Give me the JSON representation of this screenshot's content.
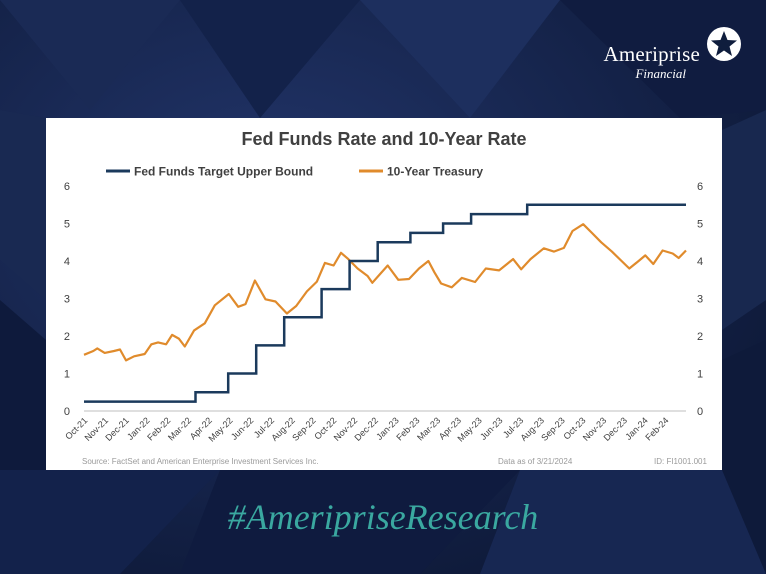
{
  "brand": {
    "name": "Ameriprise",
    "sub": "Financial",
    "hashtag": "#AmeripriseResearch"
  },
  "colors": {
    "fed": "#1b3a5c",
    "treasury": "#e08b2c",
    "teal": "#3aa8a0"
  },
  "chart_data": {
    "type": "line",
    "title": "Fed Funds Rate and 10-Year Rate",
    "ylim": [
      0,
      6
    ],
    "yticks": [
      0,
      1,
      2,
      3,
      4,
      5,
      6
    ],
    "xlim": [
      "2021-10-01",
      "2024-03-21"
    ],
    "x_tick_labels": [
      "Oct-21",
      "Nov-21",
      "Dec-21",
      "Jan-22",
      "Feb-22",
      "Mar-22",
      "Apr-22",
      "May-22",
      "Jun-22",
      "Jul-22",
      "Aug-22",
      "Sep-22",
      "Oct-22",
      "Nov-22",
      "Dec-22",
      "Jan-23",
      "Feb-23",
      "Mar-23",
      "Apr-23",
      "May-23",
      "Jun-23",
      "Jul-23",
      "Aug-23",
      "Sep-23",
      "Oct-23",
      "Nov-23",
      "Dec-23",
      "Jan-24",
      "Feb-24"
    ],
    "legend": [
      "Fed Funds Target Upper Bound",
      "10-Year Treasury"
    ],
    "legend_position": "top",
    "series": [
      {
        "name": "Fed Funds Target Upper Bound",
        "step": true,
        "points": [
          [
            "2021-10-01",
            0.25
          ],
          [
            "2022-03-17",
            0.5
          ],
          [
            "2022-05-05",
            1.0
          ],
          [
            "2022-06-16",
            1.75
          ],
          [
            "2022-07-28",
            2.5
          ],
          [
            "2022-09-22",
            3.25
          ],
          [
            "2022-11-03",
            4.0
          ],
          [
            "2022-12-15",
            4.5
          ],
          [
            "2023-02-02",
            4.75
          ],
          [
            "2023-03-23",
            5.0
          ],
          [
            "2023-05-04",
            5.25
          ],
          [
            "2023-07-27",
            5.5
          ],
          [
            "2024-03-21",
            5.5
          ]
        ]
      },
      {
        "name": "10-Year Treasury",
        "points": [
          [
            "2021-10-01",
            1.5
          ],
          [
            "2021-10-15",
            1.6
          ],
          [
            "2021-10-21",
            1.67
          ],
          [
            "2021-11-01",
            1.55
          ],
          [
            "2021-11-15",
            1.6
          ],
          [
            "2021-11-24",
            1.64
          ],
          [
            "2021-12-03",
            1.35
          ],
          [
            "2021-12-15",
            1.46
          ],
          [
            "2021-12-31",
            1.52
          ],
          [
            "2022-01-10",
            1.78
          ],
          [
            "2022-01-20",
            1.83
          ],
          [
            "2022-02-01",
            1.78
          ],
          [
            "2022-02-10",
            2.03
          ],
          [
            "2022-02-20",
            1.93
          ],
          [
            "2022-03-01",
            1.72
          ],
          [
            "2022-03-15",
            2.15
          ],
          [
            "2022-03-31",
            2.34
          ],
          [
            "2022-04-15",
            2.82
          ],
          [
            "2022-05-06",
            3.12
          ],
          [
            "2022-05-20",
            2.78
          ],
          [
            "2022-05-31",
            2.85
          ],
          [
            "2022-06-14",
            3.48
          ],
          [
            "2022-06-30",
            2.98
          ],
          [
            "2022-07-15",
            2.92
          ],
          [
            "2022-08-01",
            2.6
          ],
          [
            "2022-08-15",
            2.8
          ],
          [
            "2022-08-31",
            3.19
          ],
          [
            "2022-09-15",
            3.45
          ],
          [
            "2022-09-27",
            3.95
          ],
          [
            "2022-10-10",
            3.88
          ],
          [
            "2022-10-21",
            4.22
          ],
          [
            "2022-11-01",
            4.05
          ],
          [
            "2022-11-15",
            3.8
          ],
          [
            "2022-11-30",
            3.6
          ],
          [
            "2022-12-07",
            3.42
          ],
          [
            "2022-12-20",
            3.68
          ],
          [
            "2022-12-30",
            3.88
          ],
          [
            "2023-01-15",
            3.5
          ],
          [
            "2023-01-31",
            3.52
          ],
          [
            "2023-02-15",
            3.8
          ],
          [
            "2023-03-01",
            4.0
          ],
          [
            "2023-03-10",
            3.7
          ],
          [
            "2023-03-20",
            3.4
          ],
          [
            "2023-04-05",
            3.3
          ],
          [
            "2023-04-20",
            3.55
          ],
          [
            "2023-05-10",
            3.44
          ],
          [
            "2023-05-26",
            3.8
          ],
          [
            "2023-06-15",
            3.75
          ],
          [
            "2023-07-06",
            4.05
          ],
          [
            "2023-07-18",
            3.78
          ],
          [
            "2023-08-01",
            4.05
          ],
          [
            "2023-08-21",
            4.34
          ],
          [
            "2023-09-05",
            4.25
          ],
          [
            "2023-09-20",
            4.35
          ],
          [
            "2023-10-03",
            4.8
          ],
          [
            "2023-10-19",
            4.98
          ],
          [
            "2023-11-01",
            4.75
          ],
          [
            "2023-11-15",
            4.5
          ],
          [
            "2023-12-01",
            4.25
          ],
          [
            "2023-12-27",
            3.8
          ],
          [
            "2024-01-10",
            4.0
          ],
          [
            "2024-01-20",
            4.15
          ],
          [
            "2024-02-01",
            3.92
          ],
          [
            "2024-02-15",
            4.28
          ],
          [
            "2024-03-01",
            4.2
          ],
          [
            "2024-03-10",
            4.08
          ],
          [
            "2024-03-21",
            4.28
          ]
        ]
      }
    ]
  },
  "footer": {
    "source": "Source: FactSet and American Enterprise Investment Services Inc.",
    "date": "Data as of 3/21/2024",
    "id": "ID: FI1001.001"
  }
}
